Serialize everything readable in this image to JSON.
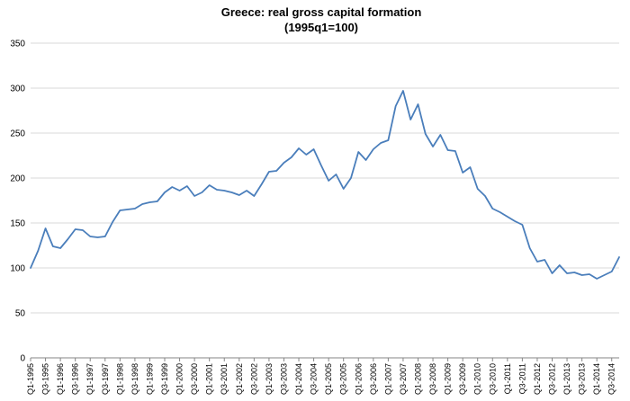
{
  "chart_data": {
    "type": "line",
    "title": "Greece: real gross capital formation",
    "subtitle": "(1995q1=100)",
    "xlabel": "",
    "ylabel": "",
    "ylim": [
      0,
      350
    ],
    "yticks": [
      0,
      50,
      100,
      150,
      200,
      250,
      300,
      350
    ],
    "grid": true,
    "line_color": "#4a7ebb",
    "x": [
      "Q1-1995",
      "Q2-1995",
      "Q3-1995",
      "Q4-1995",
      "Q1-1996",
      "Q2-1996",
      "Q3-1996",
      "Q4-1996",
      "Q1-1997",
      "Q2-1997",
      "Q3-1997",
      "Q4-1997",
      "Q1-1998",
      "Q2-1998",
      "Q3-1998",
      "Q4-1998",
      "Q1-1999",
      "Q2-1999",
      "Q3-1999",
      "Q4-1999",
      "Q1-2000",
      "Q2-2000",
      "Q3-2000",
      "Q4-2000",
      "Q1-2001",
      "Q2-2001",
      "Q3-2001",
      "Q4-2001",
      "Q1-2002",
      "Q2-2002",
      "Q3-2002",
      "Q4-2002",
      "Q1-2003",
      "Q2-2003",
      "Q3-2003",
      "Q4-2003",
      "Q1-2004",
      "Q2-2004",
      "Q3-2004",
      "Q4-2004",
      "Q1-2005",
      "Q2-2005",
      "Q3-2005",
      "Q4-2005",
      "Q1-2006",
      "Q2-2006",
      "Q3-2006",
      "Q4-2006",
      "Q1-2007",
      "Q2-2007",
      "Q3-2007",
      "Q4-2007",
      "Q1-2008",
      "Q2-2008",
      "Q3-2008",
      "Q4-2008",
      "Q1-2009",
      "Q2-2009",
      "Q3-2009",
      "Q4-2009",
      "Q1-2010",
      "Q2-2010",
      "Q3-2010",
      "Q4-2010",
      "Q1-2011",
      "Q2-2011",
      "Q3-2011",
      "Q4-2011",
      "Q1-2012",
      "Q2-2012",
      "Q3-2012",
      "Q4-2012",
      "Q1-2013",
      "Q2-2013",
      "Q3-2013",
      "Q4-2013",
      "Q1-2014",
      "Q2-2014",
      "Q3-2014",
      "Q4-2014"
    ],
    "tick_labels": [
      "Q1-1995",
      "Q3-1995",
      "Q1-1996",
      "Q3-1996",
      "Q1-1997",
      "Q3-1997",
      "Q1-1998",
      "Q3-1998",
      "Q1-1999",
      "Q3-1999",
      "Q1-2000",
      "Q3-2000",
      "Q1-2001",
      "Q3-2001",
      "Q1-2002",
      "Q3-2002",
      "Q1-2003",
      "Q3-2003",
      "Q1-2004",
      "Q3-2004",
      "Q1-2005",
      "Q3-2005",
      "Q1-2006",
      "Q3-2006",
      "Q1-2007",
      "Q3-2007",
      "Q1-2008",
      "Q3-2008",
      "Q1-2009",
      "Q3-2009",
      "Q1-2010",
      "Q3-2010",
      "Q1-2011",
      "Q3-2011",
      "Q1-2012",
      "Q3-2012",
      "Q1-2013",
      "Q3-2013",
      "Q1-2014",
      "Q3-2014"
    ],
    "values": [
      100,
      119,
      144,
      124,
      122,
      132,
      143,
      142,
      135,
      134,
      135,
      151,
      164,
      165,
      166,
      171,
      173,
      174,
      184,
      190,
      186,
      191,
      180,
      184,
      192,
      187,
      186,
      184,
      181,
      186,
      180,
      193,
      207,
      208,
      217,
      223,
      233,
      226,
      232,
      214,
      197,
      204,
      188,
      200,
      229,
      220,
      232,
      239,
      242,
      280,
      297,
      265,
      282,
      249,
      235,
      248,
      231,
      230,
      206,
      212,
      188,
      180,
      166,
      162,
      157,
      152,
      148,
      122,
      107,
      109,
      94,
      103,
      94,
      95,
      92,
      93,
      88,
      92,
      96,
      112
    ]
  }
}
